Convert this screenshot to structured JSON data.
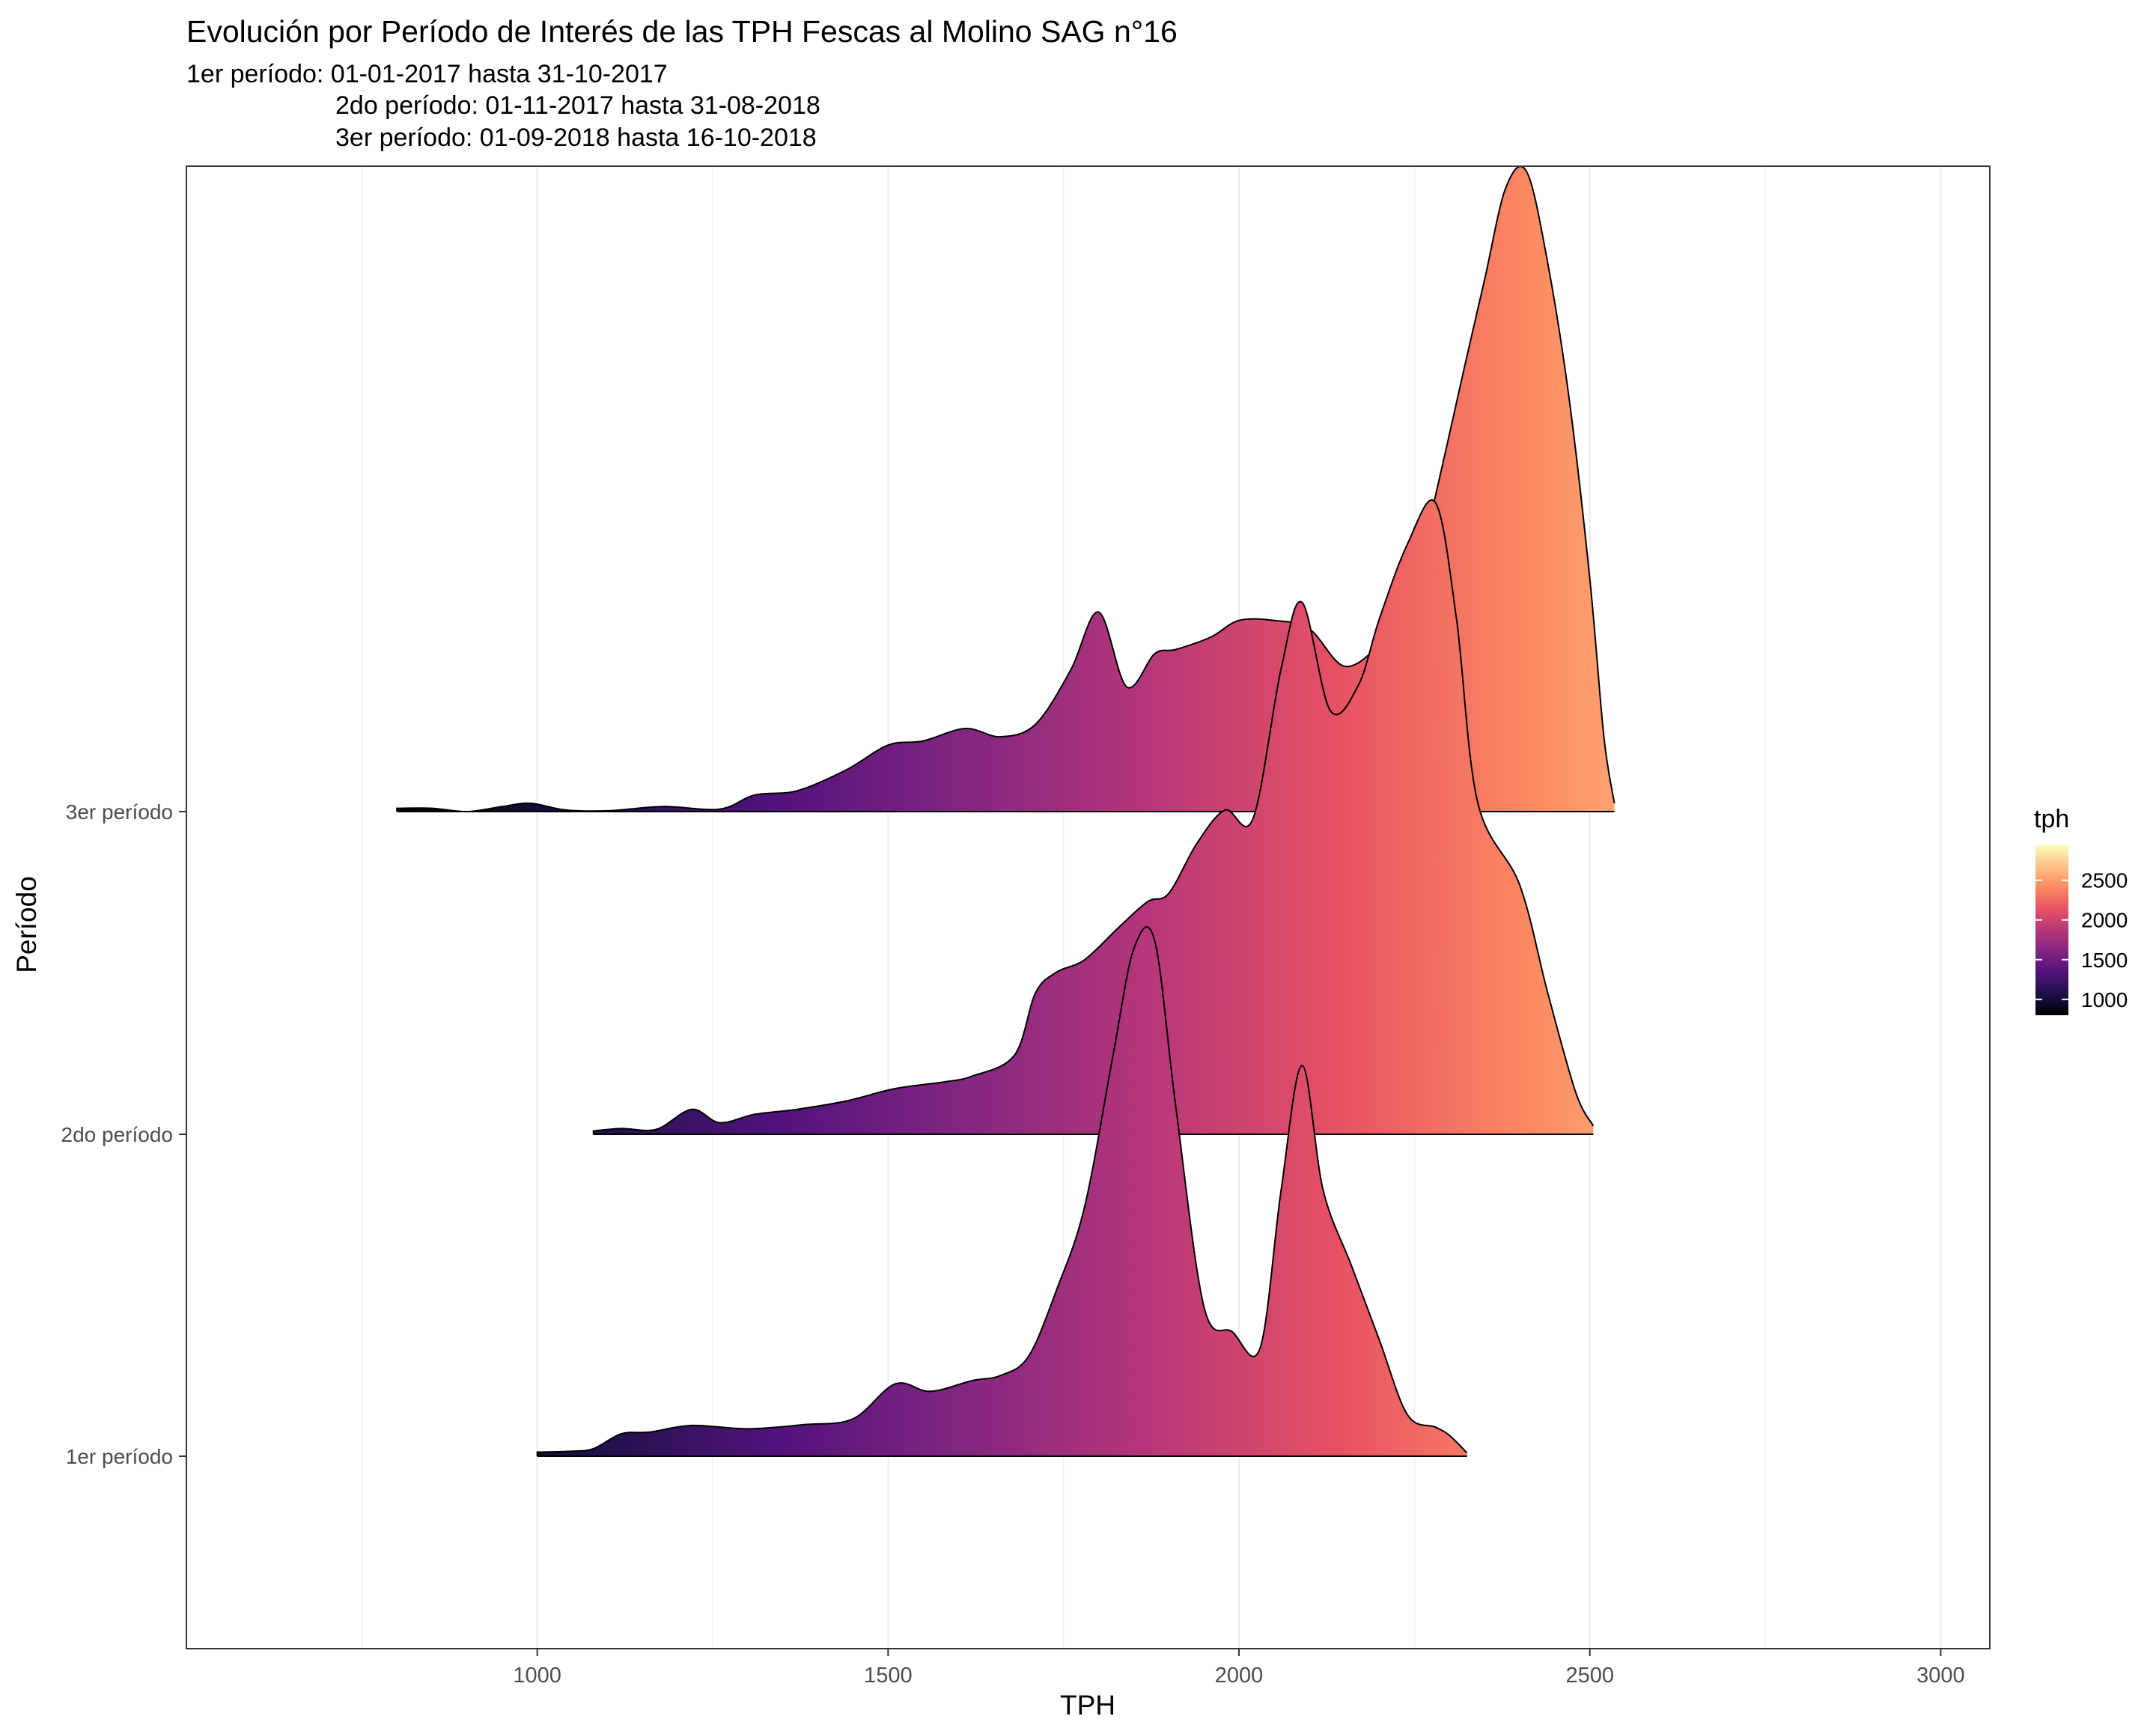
{
  "chart_data": {
    "type": "ridgeline",
    "title": "Evolución por Período de Interés de las TPH Fescas al Molino SAG n°16",
    "subtitle": [
      "1er período: 01-01-2017 hasta 31-10-2017",
      "2do período: 01-11-2017 hasta 31-08-2018",
      "3er período: 01-09-2018 hasta 16-10-2018"
    ],
    "xlabel": "TPH",
    "ylabel": "Período",
    "xlim": [
      500,
      3070
    ],
    "x_ticks": [
      1000,
      1500,
      2000,
      2500,
      3000
    ],
    "x_tick_labels": [
      "1000",
      "1500",
      "2000",
      "2500",
      "3000"
    ],
    "grid": true,
    "legend": {
      "title": "tph",
      "position": "right",
      "range": [
        800,
        2950
      ],
      "ticks": [
        1000,
        1500,
        2000,
        2500
      ],
      "tick_labels": [
        "1000",
        "1500",
        "2000",
        "2500"
      ],
      "palette": [
        "#000004",
        "#1d1147",
        "#51127c",
        "#822681",
        "#b73779",
        "#e75263",
        "#fc8961",
        "#fec287",
        "#fcfdbf"
      ]
    },
    "series": [
      {
        "name": "1er período",
        "points": [
          [
            1000,
            0.05
          ],
          [
            1050,
            0.06
          ],
          [
            1080,
            0.09
          ],
          [
            1120,
            0.27
          ],
          [
            1160,
            0.29
          ],
          [
            1220,
            0.37
          ],
          [
            1300,
            0.33
          ],
          [
            1380,
            0.38
          ],
          [
            1450,
            0.45
          ],
          [
            1510,
            0.87
          ],
          [
            1560,
            0.78
          ],
          [
            1620,
            0.91
          ],
          [
            1660,
            0.97
          ],
          [
            1700,
            1.2
          ],
          [
            1740,
            2.0
          ],
          [
            1780,
            3.0
          ],
          [
            1820,
            4.8
          ],
          [
            1850,
            6.1
          ],
          [
            1880,
            6.2
          ],
          [
            1910,
            4.2
          ],
          [
            1950,
            1.8
          ],
          [
            1990,
            1.5
          ],
          [
            2030,
            1.3
          ],
          [
            2060,
            3.2
          ],
          [
            2090,
            4.7
          ],
          [
            2120,
            3.2
          ],
          [
            2160,
            2.3
          ],
          [
            2200,
            1.4
          ],
          [
            2240,
            0.5
          ],
          [
            2280,
            0.35
          ],
          [
            2300,
            0.25
          ],
          [
            2325,
            0.04
          ]
        ]
      },
      {
        "name": "2do período",
        "points": [
          [
            1080,
            0.04
          ],
          [
            1120,
            0.07
          ],
          [
            1170,
            0.06
          ],
          [
            1220,
            0.3
          ],
          [
            1260,
            0.14
          ],
          [
            1310,
            0.24
          ],
          [
            1370,
            0.3
          ],
          [
            1440,
            0.4
          ],
          [
            1510,
            0.55
          ],
          [
            1580,
            0.63
          ],
          [
            1620,
            0.7
          ],
          [
            1680,
            0.95
          ],
          [
            1710,
            1.7
          ],
          [
            1740,
            1.95
          ],
          [
            1780,
            2.1
          ],
          [
            1830,
            2.5
          ],
          [
            1870,
            2.8
          ],
          [
            1900,
            2.9
          ],
          [
            1940,
            3.5
          ],
          [
            1980,
            3.9
          ],
          [
            2020,
            3.8
          ],
          [
            2060,
            5.6
          ],
          [
            2090,
            6.4
          ],
          [
            2130,
            5.1
          ],
          [
            2170,
            5.4
          ],
          [
            2200,
            6.2
          ],
          [
            2240,
            7.1
          ],
          [
            2280,
            7.6
          ],
          [
            2310,
            6.2
          ],
          [
            2340,
            4.0
          ],
          [
            2400,
            3.0
          ],
          [
            2440,
            1.7
          ],
          [
            2480,
            0.5
          ],
          [
            2505,
            0.1
          ]
        ]
      },
      {
        "name": "3er período",
        "points": [
          [
            800,
            0.04
          ],
          [
            850,
            0.04
          ],
          [
            900,
            0.0
          ],
          [
            950,
            0.06
          ],
          [
            990,
            0.1
          ],
          [
            1040,
            0.02
          ],
          [
            1100,
            0.01
          ],
          [
            1180,
            0.06
          ],
          [
            1260,
            0.03
          ],
          [
            1310,
            0.2
          ],
          [
            1370,
            0.25
          ],
          [
            1440,
            0.5
          ],
          [
            1500,
            0.8
          ],
          [
            1550,
            0.85
          ],
          [
            1610,
            1.0
          ],
          [
            1660,
            0.9
          ],
          [
            1710,
            1.05
          ],
          [
            1760,
            1.7
          ],
          [
            1800,
            2.4
          ],
          [
            1840,
            1.5
          ],
          [
            1880,
            1.9
          ],
          [
            1910,
            1.95
          ],
          [
            1960,
            2.1
          ],
          [
            2000,
            2.3
          ],
          [
            2050,
            2.3
          ],
          [
            2100,
            2.2
          ],
          [
            2150,
            1.75
          ],
          [
            2200,
            2.0
          ],
          [
            2240,
            2.4
          ],
          [
            2280,
            3.8
          ],
          [
            2320,
            5.3
          ],
          [
            2350,
            6.4
          ],
          [
            2380,
            7.5
          ],
          [
            2410,
            7.7
          ],
          [
            2440,
            6.6
          ],
          [
            2470,
            5.0
          ],
          [
            2500,
            2.8
          ],
          [
            2520,
            0.9
          ],
          [
            2535,
            0.1
          ]
        ]
      }
    ]
  }
}
